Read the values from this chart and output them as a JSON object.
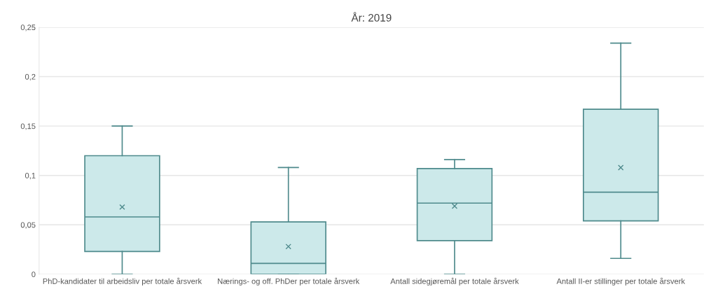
{
  "chart_data": {
    "type": "box",
    "title": "År: 2019",
    "categories": [
      "PhD-kandidater til arbeidsliv per totale årsverk",
      "Nærings- og off. PhDer per totale årsverk",
      "Antall sidegjøremål per totale årsverk",
      "Antall II-er stillinger per totale årsverk"
    ],
    "boxes": [
      {
        "low": 0,
        "q1": 0.023,
        "median": 0.058,
        "q3": 0.12,
        "high": 0.15,
        "mean": 0.068
      },
      {
        "low": 0,
        "q1": 0,
        "median": 0.011,
        "q3": 0.053,
        "high": 0.108,
        "mean": 0.028
      },
      {
        "low": 0,
        "q1": 0.034,
        "median": 0.072,
        "q3": 0.107,
        "high": 0.116,
        "mean": 0.069
      },
      {
        "low": 0.016,
        "q1": 0.054,
        "median": 0.083,
        "q3": 0.167,
        "high": 0.234,
        "mean": 0.108
      }
    ],
    "color": "#cce9ea",
    "ylim": [
      0,
      0.25
    ],
    "yticks": [
      {
        "value": 0,
        "label": "0"
      },
      {
        "value": 0.05,
        "label": "0,05"
      },
      {
        "value": 0.1,
        "label": "0,1"
      },
      {
        "value": 0.15,
        "label": "0,15"
      },
      {
        "value": 0.2,
        "label": "0,2"
      },
      {
        "value": 0.25,
        "label": "0,25"
      }
    ],
    "grid": "y",
    "marker": "cross"
  }
}
